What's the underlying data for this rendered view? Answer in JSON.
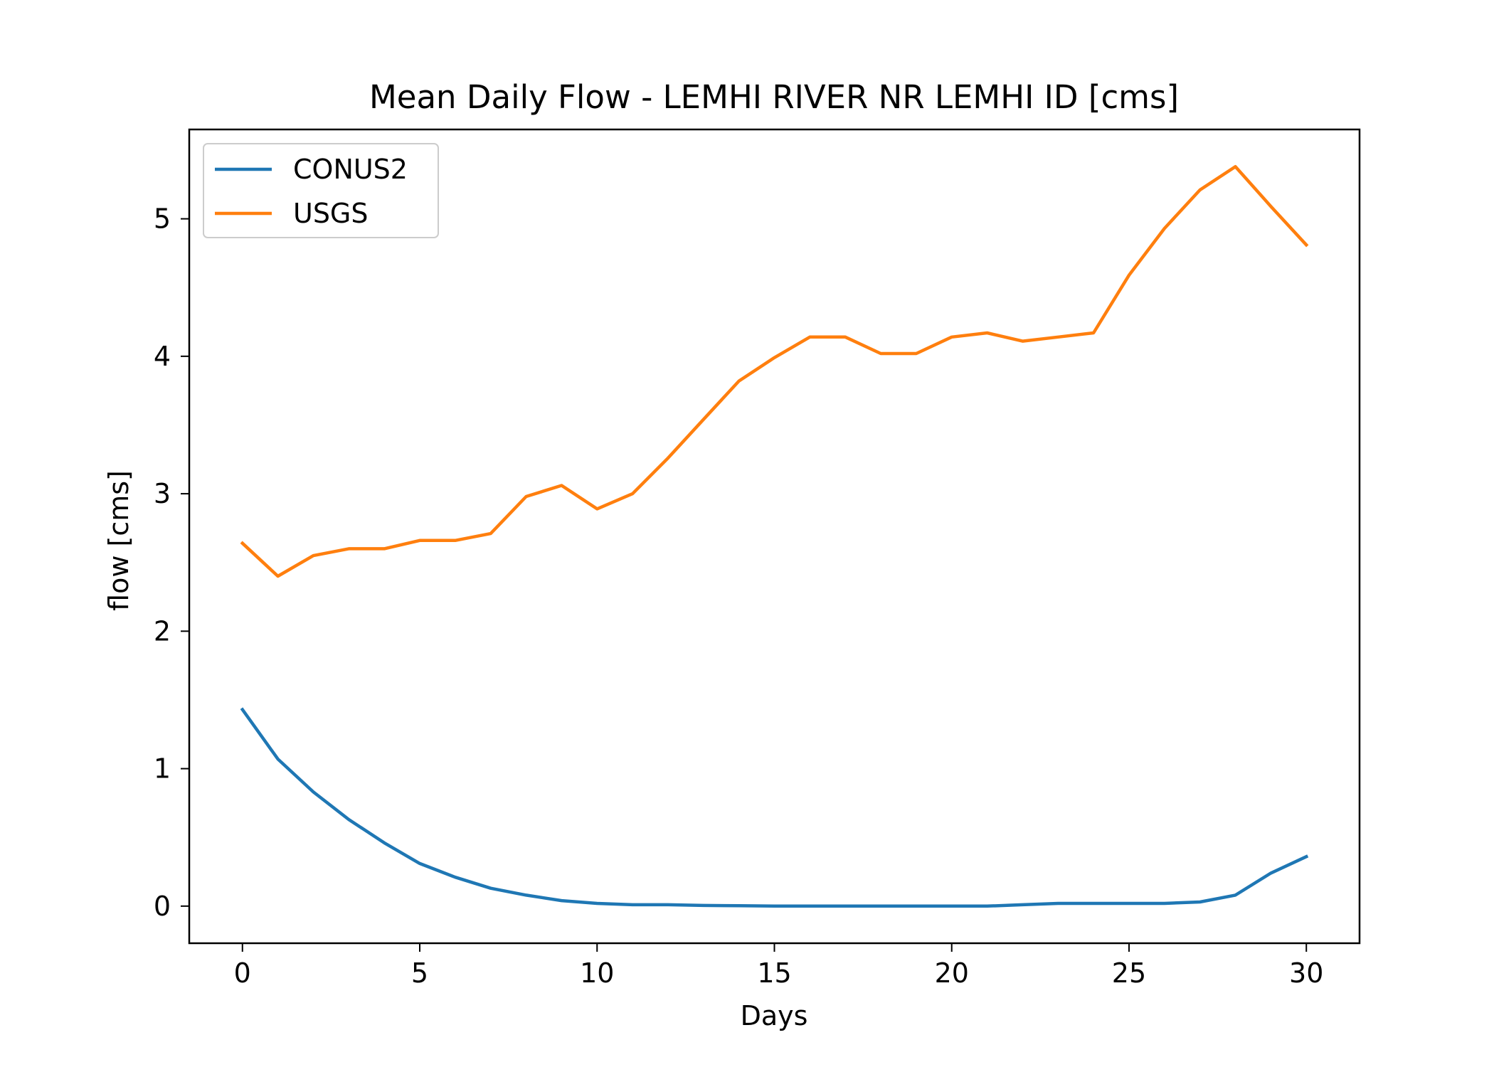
{
  "chart_data": {
    "type": "line",
    "title": "Mean Daily Flow - LEMHI RIVER NR LEMHI ID [cms]",
    "xlabel": "Days",
    "ylabel": "flow [cms]",
    "xlim": [
      -1.5,
      31.5
    ],
    "ylim": [
      -0.27,
      5.65
    ],
    "xticks": [
      0,
      5,
      10,
      15,
      20,
      25,
      30
    ],
    "yticks": [
      0,
      1,
      2,
      3,
      4,
      5
    ],
    "grid": false,
    "legend_position": "upper-left",
    "x": [
      0,
      1,
      2,
      3,
      4,
      5,
      6,
      7,
      8,
      9,
      10,
      11,
      12,
      13,
      14,
      15,
      16,
      17,
      18,
      19,
      20,
      21,
      22,
      23,
      24,
      25,
      26,
      27,
      28,
      29,
      30
    ],
    "series": [
      {
        "name": "CONUS2",
        "color": "#1f77b4",
        "values": [
          1.43,
          1.07,
          0.83,
          0.63,
          0.46,
          0.31,
          0.21,
          0.13,
          0.08,
          0.04,
          0.02,
          0.01,
          0.01,
          0.005,
          0.003,
          0.0,
          0.0,
          0.0,
          0.0,
          0.0,
          0.0,
          0.0,
          0.01,
          0.02,
          0.02,
          0.02,
          0.02,
          0.03,
          0.08,
          0.24,
          0.36
        ]
      },
      {
        "name": "USGS",
        "color": "#ff7f0e",
        "values": [
          2.64,
          2.4,
          2.55,
          2.6,
          2.6,
          2.66,
          2.66,
          2.71,
          2.98,
          3.06,
          2.89,
          3.0,
          3.26,
          3.54,
          3.82,
          3.99,
          4.14,
          4.14,
          4.02,
          4.02,
          4.14,
          4.17,
          4.11,
          4.14,
          4.17,
          4.59,
          4.93,
          5.21,
          5.38,
          5.09,
          4.81
        ]
      }
    ]
  }
}
